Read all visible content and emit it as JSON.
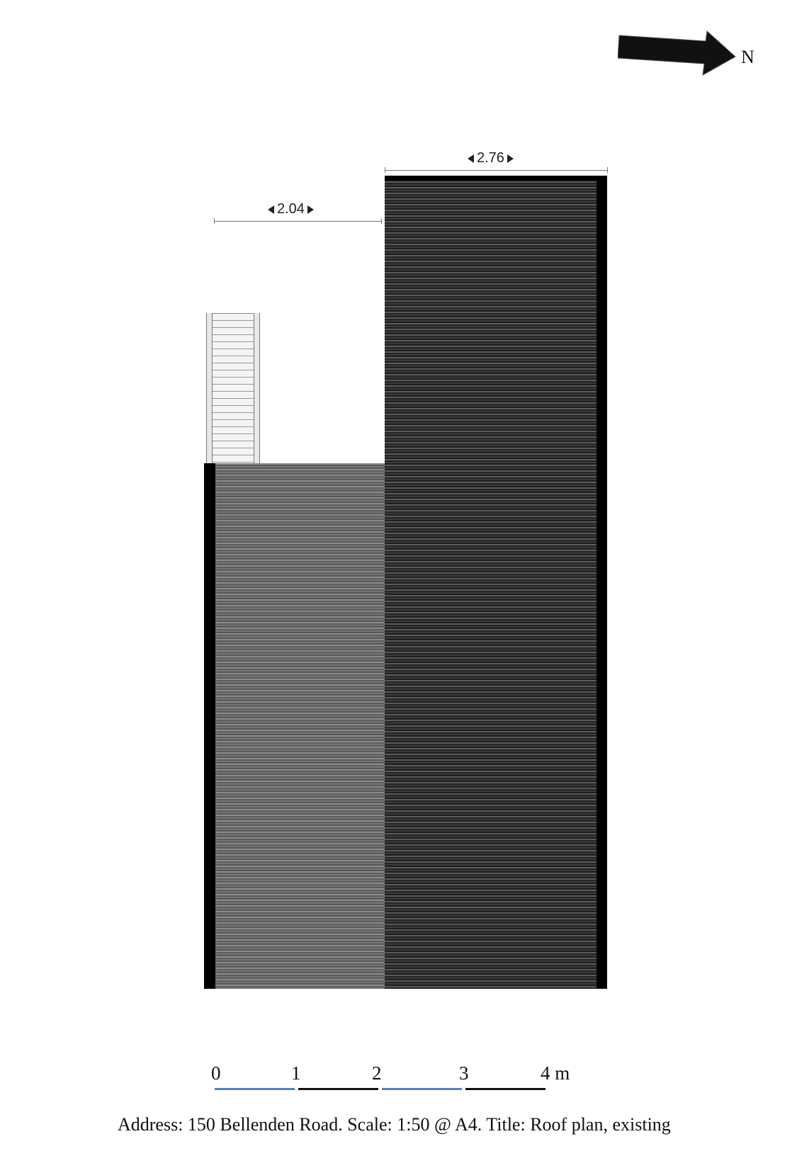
{
  "north": {
    "label": "N",
    "icon": "north-arrow-icon"
  },
  "dimensions": {
    "rear_width": "2.04",
    "main_width": "2.76"
  },
  "scale_bar": {
    "ticks": [
      "0",
      "1",
      "2",
      "3",
      "4 m"
    ],
    "segment_colors": [
      "#5b7fb3",
      "#111111",
      "#5b7fb3",
      "#111111"
    ]
  },
  "caption": "Address: 150 Bellenden Road.  Scale: 1:50 @ A4. Title: Roof plan, existing",
  "colors": {
    "main_roof": "#2e2e2e",
    "rear_roof": "#6a6a6a",
    "wall": "#000000",
    "skylight": "#f2f2f2"
  }
}
